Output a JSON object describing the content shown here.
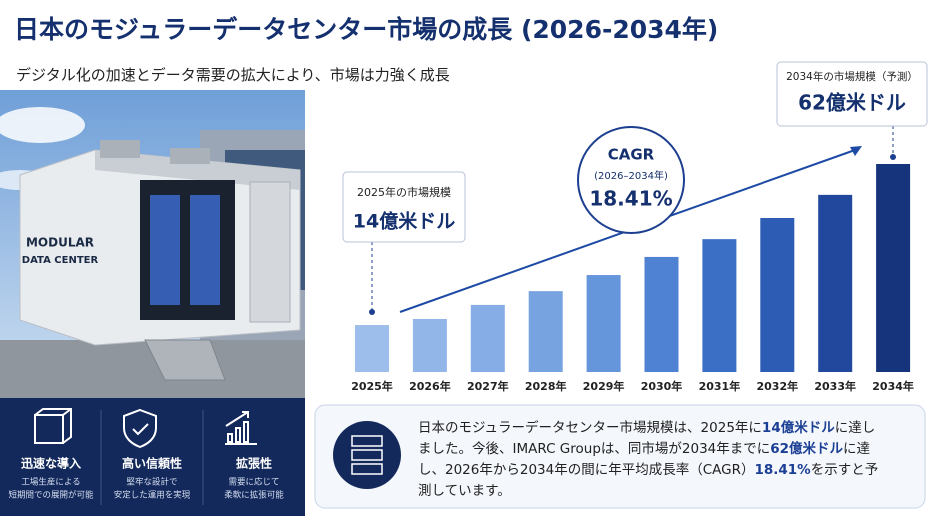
{
  "chart_data": {
    "type": "bar",
    "title": "日本のモジュラーデータセンター市場の成長 (2026-2034年)",
    "subtitle": "デジタル化の加速とデータ需要の拡大により、市場は力強く成長",
    "categories": [
      "2025年",
      "2026年",
      "2027年",
      "2028年",
      "2029年",
      "2030年",
      "2031年",
      "2032年",
      "2033年",
      "2034年"
    ],
    "values": [
      14,
      15.8,
      20,
      24.1,
      28.9,
      34.3,
      39.6,
      45.9,
      52.8,
      62
    ],
    "colors": [
      "#9dbdea",
      "#93b6e8",
      "#86ade5",
      "#78a3e1",
      "#6595db",
      "#4f82d2",
      "#3b6fc6",
      "#2c5cb4",
      "#21489c",
      "#16347c"
    ],
    "annotations": [
      {
        "label": "2025年の市場規模",
        "value": "14億米ドル"
      },
      {
        "label": "2034年の市場規模（予測）",
        "value": "62億米ドル"
      }
    ],
    "cagr": {
      "label": "CAGR",
      "period": "(2026–2034年)",
      "value": "18.41%"
    }
  },
  "image": {
    "label_line1": "MODULAR",
    "label_line2": "DATA CENTER"
  },
  "features": [
    {
      "title": "迅速な導入",
      "lines": [
        "工場生産による",
        "短期間での展開が可能"
      ]
    },
    {
      "title": "高い信頼性",
      "lines": [
        "堅牢な設計で",
        "安定した運用を実現"
      ]
    },
    {
      "title": "拡張性",
      "lines": [
        "需要に応じて",
        "柔軟に拡張可能"
      ]
    }
  ],
  "summary": [
    {
      "text": "日本のモジュラーデータセンター市場規模は、2025年に",
      "bold": false
    },
    {
      "text": "14億米ドル",
      "bold": true
    },
    {
      "text": "に達しました。今後、IMARC Groupは、同市場が2034年までに",
      "bold": false
    },
    {
      "text": "62億米ドル",
      "bold": true
    },
    {
      "text": "に達し、2026年から2034年の間に年平均成長率（CAGR）",
      "bold": false
    },
    {
      "text": "18.41%",
      "bold": true
    },
    {
      "text": "を示すと予測しています。",
      "bold": false
    }
  ]
}
